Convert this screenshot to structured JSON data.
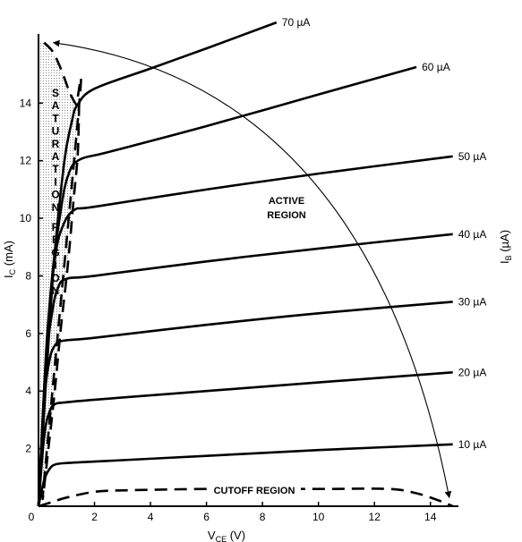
{
  "chart_data": {
    "type": "line",
    "xlabel": "V",
    "xlabel_sub": "CE",
    "xlabel_unit": " (V)",
    "ylabel": "I",
    "ylabel_sub": "C",
    "ylabel_unit": " (mA)",
    "right_label": "I",
    "right_label_sub": "B",
    "right_label_unit": " (µA)",
    "xlim": [
      0,
      15
    ],
    "ylim": [
      0,
      16.4
    ],
    "x_ticks": [
      0,
      2,
      4,
      6,
      8,
      10,
      12,
      14
    ],
    "y_ticks": [
      2,
      4,
      6,
      8,
      10,
      12,
      14
    ],
    "x_tick_labels": [
      "0",
      "2",
      "4",
      "6",
      "8",
      "10",
      "12",
      "14"
    ],
    "y_tick_labels": [
      "2",
      "4",
      "6",
      "8",
      "10",
      "12",
      "14"
    ],
    "grid": false,
    "series": [
      {
        "name": "10 µA",
        "x": [
          0,
          0.2,
          0.4,
          0.6,
          1.0,
          2,
          6,
          10,
          14.8
        ],
        "y": [
          0,
          0.9,
          1.3,
          1.45,
          1.5,
          1.55,
          1.75,
          1.95,
          2.15
        ]
      },
      {
        "name": "20 µA",
        "x": [
          0,
          0.2,
          0.4,
          0.6,
          0.9,
          2,
          6,
          10,
          14.8
        ],
        "y": [
          0,
          2.4,
          3.3,
          3.55,
          3.6,
          3.7,
          4.0,
          4.3,
          4.65
        ]
      },
      {
        "name": "30 µA",
        "x": [
          0,
          0.2,
          0.4,
          0.6,
          0.9,
          2,
          6,
          10,
          14.8
        ],
        "y": [
          0,
          3.6,
          5.1,
          5.6,
          5.75,
          5.85,
          6.3,
          6.7,
          7.1
        ]
      },
      {
        "name": "40 µA",
        "x": [
          0,
          0.25,
          0.5,
          0.7,
          1.0,
          2,
          6,
          10,
          14.8
        ],
        "y": [
          0,
          4.8,
          6.8,
          7.6,
          7.9,
          8.0,
          8.5,
          8.95,
          9.45
        ]
      },
      {
        "name": "50 µA",
        "x": [
          0,
          0.3,
          0.6,
          0.9,
          1.3,
          2,
          6,
          10,
          14.8
        ],
        "y": [
          0,
          5.8,
          8.7,
          9.8,
          10.3,
          10.4,
          11.0,
          11.55,
          12.15
        ]
      },
      {
        "name": "60 µA",
        "x": [
          0,
          0.4,
          0.8,
          1.1,
          1.5,
          2.5,
          6,
          10,
          13.5
        ],
        "y": [
          0,
          7.0,
          10.3,
          11.6,
          12.05,
          12.3,
          13.2,
          14.3,
          15.25
        ]
      },
      {
        "name": "70 µA",
        "x": [
          0,
          0.5,
          0.9,
          1.2,
          1.4,
          2,
          4,
          6,
          8.5
        ],
        "y": [
          0,
          7.8,
          11.8,
          13.4,
          13.95,
          14.5,
          15.2,
          15.9,
          16.8
        ]
      }
    ],
    "saturation_boundary": {
      "x": [
        1.45,
        1.4,
        1.25,
        1.05,
        0.8,
        0.6,
        0.4,
        0.2,
        0
      ],
      "y": [
        13.9,
        12.2,
        10.6,
        8.4,
        6.2,
        4.2,
        2.4,
        0.9,
        0
      ],
      "top_x": [
        0.2,
        0.5,
        0.75,
        0.95,
        1.1,
        1.25,
        1.35,
        1.45
      ],
      "top_y": [
        16.1,
        15.8,
        15.3,
        14.8,
        14.4,
        14.1,
        13.95,
        13.9
      ]
    },
    "cutoff_boundary": {
      "x": [
        0,
        0.5,
        1.0,
        2,
        3,
        6,
        10,
        12.5,
        13.5,
        14.3,
        14.8
      ],
      "y": [
        0,
        0.15,
        0.3,
        0.5,
        0.55,
        0.6,
        0.6,
        0.6,
        0.45,
        0.2,
        0
      ]
    },
    "arrow": {
      "from": [
        0.4,
        16.1
      ],
      "to": [
        14.8,
        0.3
      ]
    },
    "annotations": {
      "active_region": [
        "ACTIVE",
        "REGION"
      ],
      "cutoff_region": "CUTOFF REGION",
      "saturation_region": [
        "S",
        "A",
        "T",
        "U",
        "R",
        "A",
        "T",
        "I",
        "O",
        "N",
        "R",
        "E",
        "G",
        "I",
        "O",
        "N"
      ]
    }
  }
}
